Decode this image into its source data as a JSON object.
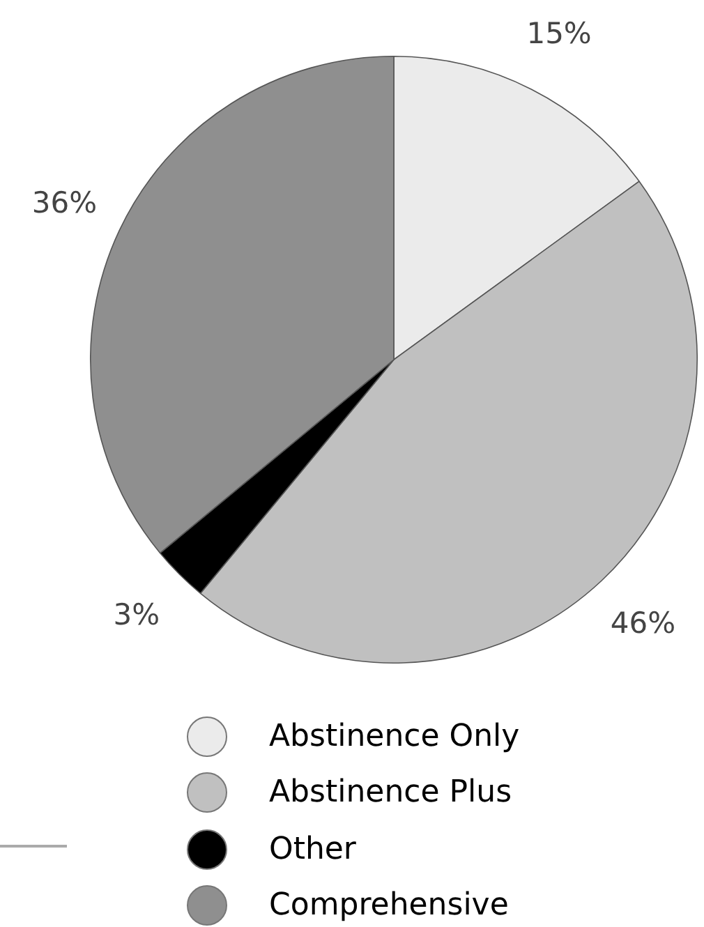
{
  "chart_data": {
    "type": "pie",
    "categories": [
      "Abstinence Only",
      "Abstinence Plus",
      "Other",
      "Comprehensive"
    ],
    "values": [
      15,
      46,
      3,
      36
    ],
    "colors": [
      "#ebebeb",
      "#c0c0c0",
      "#000000",
      "#8f8f8f"
    ],
    "value_labels": [
      "15%",
      "46%",
      "3%",
      "36%"
    ],
    "legend": "bottom"
  }
}
